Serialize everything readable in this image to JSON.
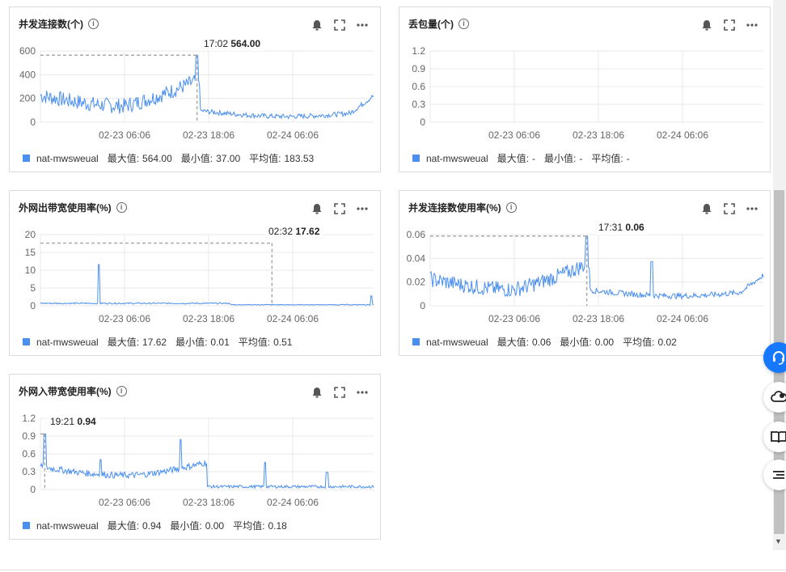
{
  "colors": {
    "series": "#4a8ff0",
    "grid": "#e8e8e8",
    "axis": "#666666",
    "primary": "#1677ff"
  },
  "icons": {
    "info": "info-icon",
    "bell": "bell-icon",
    "fullscreen": "fullscreen-icon",
    "more": "more-icon"
  },
  "legend_labels": {
    "series_name": "nat-mwsweual",
    "max": "最大值:",
    "min": "最小值:",
    "avg": "平均值:"
  },
  "charts": [
    {
      "title": "并发连接数(个)",
      "tooltip": {
        "time": "17:02",
        "value": "564.00"
      },
      "chart_data": {
        "type": "line",
        "title": "并发连接数(个)",
        "y_ticks": [
          "600",
          "400",
          "200",
          "0"
        ],
        "ylim": [
          0,
          600
        ],
        "x_ticks": [
          "02-23 06:06",
          "02-23 18:06",
          "02-24 06:06"
        ],
        "series": [
          {
            "name": "nat-mwsweual"
          }
        ]
      },
      "stats": {
        "max": "564.00",
        "min": "37.00",
        "avg": "183.53"
      }
    },
    {
      "title": "丢包量(个)",
      "tooltip": null,
      "chart_data": {
        "type": "line",
        "title": "丢包量(个)",
        "y_ticks": [
          "1.2",
          "0.9",
          "0.6",
          "0.3",
          "0"
        ],
        "ylim": [
          0,
          1.2
        ],
        "x_ticks": [
          "02-23 06:06",
          "02-23 18:06",
          "02-24 06:06"
        ],
        "series": [
          {
            "name": "nat-mwsweual"
          }
        ]
      },
      "stats": {
        "max": "-",
        "min": "-",
        "avg": "-"
      }
    },
    {
      "title": "外网出带宽使用率(%)",
      "tooltip": {
        "time": "02:32",
        "value": "17.62"
      },
      "chart_data": {
        "type": "line",
        "title": "外网出带宽使用率(%)",
        "y_ticks": [
          "20",
          "15",
          "10",
          "5",
          "0"
        ],
        "ylim": [
          0,
          20
        ],
        "x_ticks": [
          "02-23 06:06",
          "02-23 18:06",
          "02-24 06:06"
        ],
        "series": [
          {
            "name": "nat-mwsweual"
          }
        ]
      },
      "stats": {
        "max": "17.62",
        "min": "0.01",
        "avg": "0.51"
      }
    },
    {
      "title": "并发连接数使用率(%)",
      "tooltip": {
        "time": "17:31",
        "value": "0.06"
      },
      "chart_data": {
        "type": "line",
        "title": "并发连接数使用率(%)",
        "y_ticks": [
          "0.06",
          "0.04",
          "0.02",
          "0"
        ],
        "ylim": [
          0,
          0.06
        ],
        "x_ticks": [
          "02-23 06:06",
          "02-23 18:06",
          "02-24 06:06"
        ],
        "series": [
          {
            "name": "nat-mwsweual"
          }
        ]
      },
      "stats": {
        "max": "0.06",
        "min": "0.00",
        "avg": "0.02"
      }
    },
    {
      "title": "外网入带宽使用率(%)",
      "tooltip": {
        "time": "19:21",
        "value": "0.94"
      },
      "chart_data": {
        "type": "line",
        "title": "外网入带宽使用率(%)",
        "y_ticks": [
          "1.2",
          "0.9",
          "0.6",
          "0.3",
          "0"
        ],
        "ylim": [
          0,
          1.2
        ],
        "x_ticks": [
          "02-23 06:06",
          "02-23 18:06",
          "02-24 06:06"
        ],
        "series": [
          {
            "name": "nat-mwsweual"
          }
        ]
      },
      "stats": {
        "max": "0.94",
        "min": "0.00",
        "avg": "0.18"
      }
    }
  ],
  "float_buttons": [
    "headset-icon",
    "cloud-icon",
    "book-icon",
    "list-icon"
  ]
}
